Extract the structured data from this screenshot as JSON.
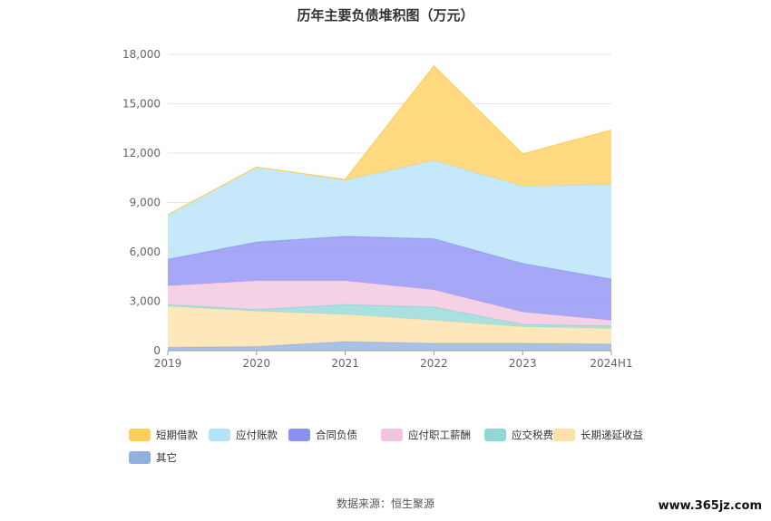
{
  "chart_data": {
    "type": "area",
    "stacked": true,
    "title": "历年主要负债堆积图（万元）",
    "categories": [
      "2019",
      "2020",
      "2021",
      "2022",
      "2023",
      "2024H1"
    ],
    "ylim": [
      0,
      18000
    ],
    "yticks": [
      "0",
      "3,000",
      "6,000",
      "9,000",
      "12,000",
      "15,000",
      "18,000"
    ],
    "grid": true,
    "legend_position": "bottom",
    "series": [
      {
        "name": "其它",
        "color": "#8fb0e0",
        "values": [
          200,
          250,
          550,
          450,
          450,
          400
        ]
      },
      {
        "name": "长期递延收益",
        "color": "#fde0a8",
        "values": [
          2500,
          2150,
          1650,
          1400,
          1000,
          950
        ]
      },
      {
        "name": "应交税费",
        "color": "#8fd8d6",
        "values": [
          100,
          100,
          600,
          800,
          150,
          150
        ]
      },
      {
        "name": "应付职工薪酬",
        "color": "#f2c4df",
        "values": [
          1150,
          1750,
          1450,
          1050,
          750,
          350
        ]
      },
      {
        "name": "合同负债",
        "color": "#8d8ff5",
        "values": [
          1600,
          2350,
          2700,
          3100,
          2950,
          2500
        ]
      },
      {
        "name": "应付账款",
        "color": "#b5e3fa",
        "values": [
          2700,
          4550,
          3400,
          4750,
          4700,
          5750
        ]
      },
      {
        "name": "短期借款",
        "color": "#ffcf5c",
        "values": [
          0,
          0,
          50,
          5750,
          1950,
          3300
        ]
      }
    ],
    "legend_order": [
      "短期借款",
      "应付账款",
      "合同负债",
      "应付职工薪酬",
      "应交税费",
      "长期递延收益",
      "其它"
    ]
  },
  "source_label": "数据来源：恒生聚源",
  "watermark": "www.365jz.com"
}
